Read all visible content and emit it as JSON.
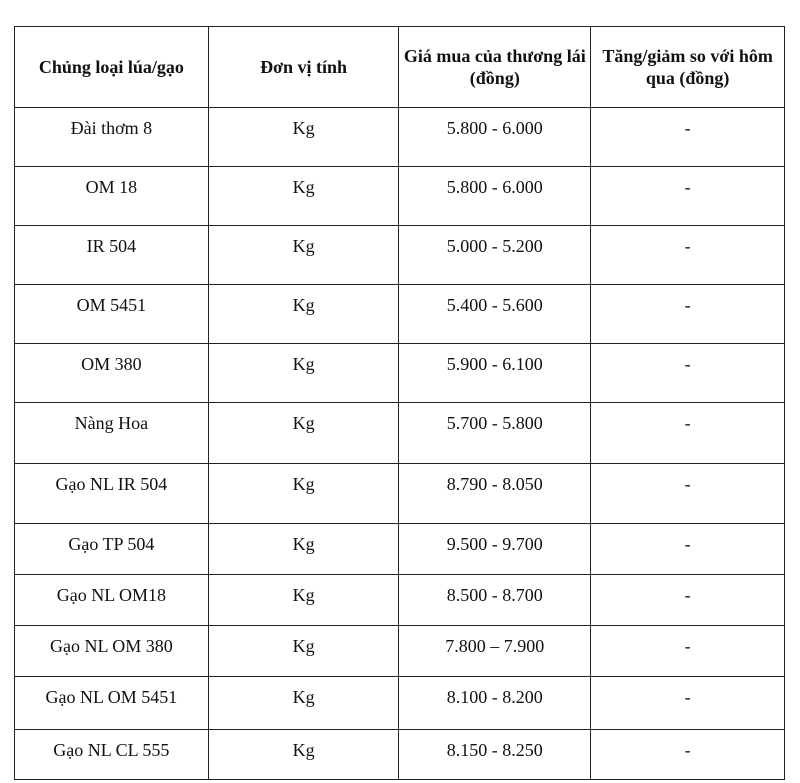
{
  "table": {
    "headers": [
      "Chủng loại lúa/gạo",
      "Đơn vị tính",
      "Giá mua của thương lái (đồng)",
      "Tăng/giảm so với hôm qua (đồng)"
    ],
    "rows": [
      [
        "Đài thơm 8",
        "Kg",
        "5.800 - 6.000",
        "-"
      ],
      [
        "OM 18",
        "Kg",
        "5.800 - 6.000",
        "-"
      ],
      [
        "IR 504",
        "Kg",
        "5.000 - 5.200",
        "-"
      ],
      [
        "OM 5451",
        "Kg",
        "5.400 - 5.600",
        "-"
      ],
      [
        "OM 380",
        "Kg",
        "5.900 - 6.100",
        "-"
      ],
      [
        "Nàng Hoa",
        "Kg",
        "5.700 - 5.800",
        "-"
      ],
      [
        "Gạo NL IR 504",
        "Kg",
        "8.790 - 8.050",
        "-"
      ],
      [
        "Gạo TP 504",
        "Kg",
        "9.500 - 9.700",
        "-"
      ],
      [
        "Gạo NL OM18",
        "Kg",
        "8.500 - 8.700",
        "-"
      ],
      [
        "Gạo NL OM 380",
        "Kg",
        "7.800 – 7.900",
        "-"
      ],
      [
        "Gạo NL OM 5451",
        "Kg",
        "8.100 - 8.200",
        "-"
      ],
      [
        "Gạo NL CL 555",
        "Kg",
        "8.150 - 8.250",
        "-"
      ]
    ]
  }
}
